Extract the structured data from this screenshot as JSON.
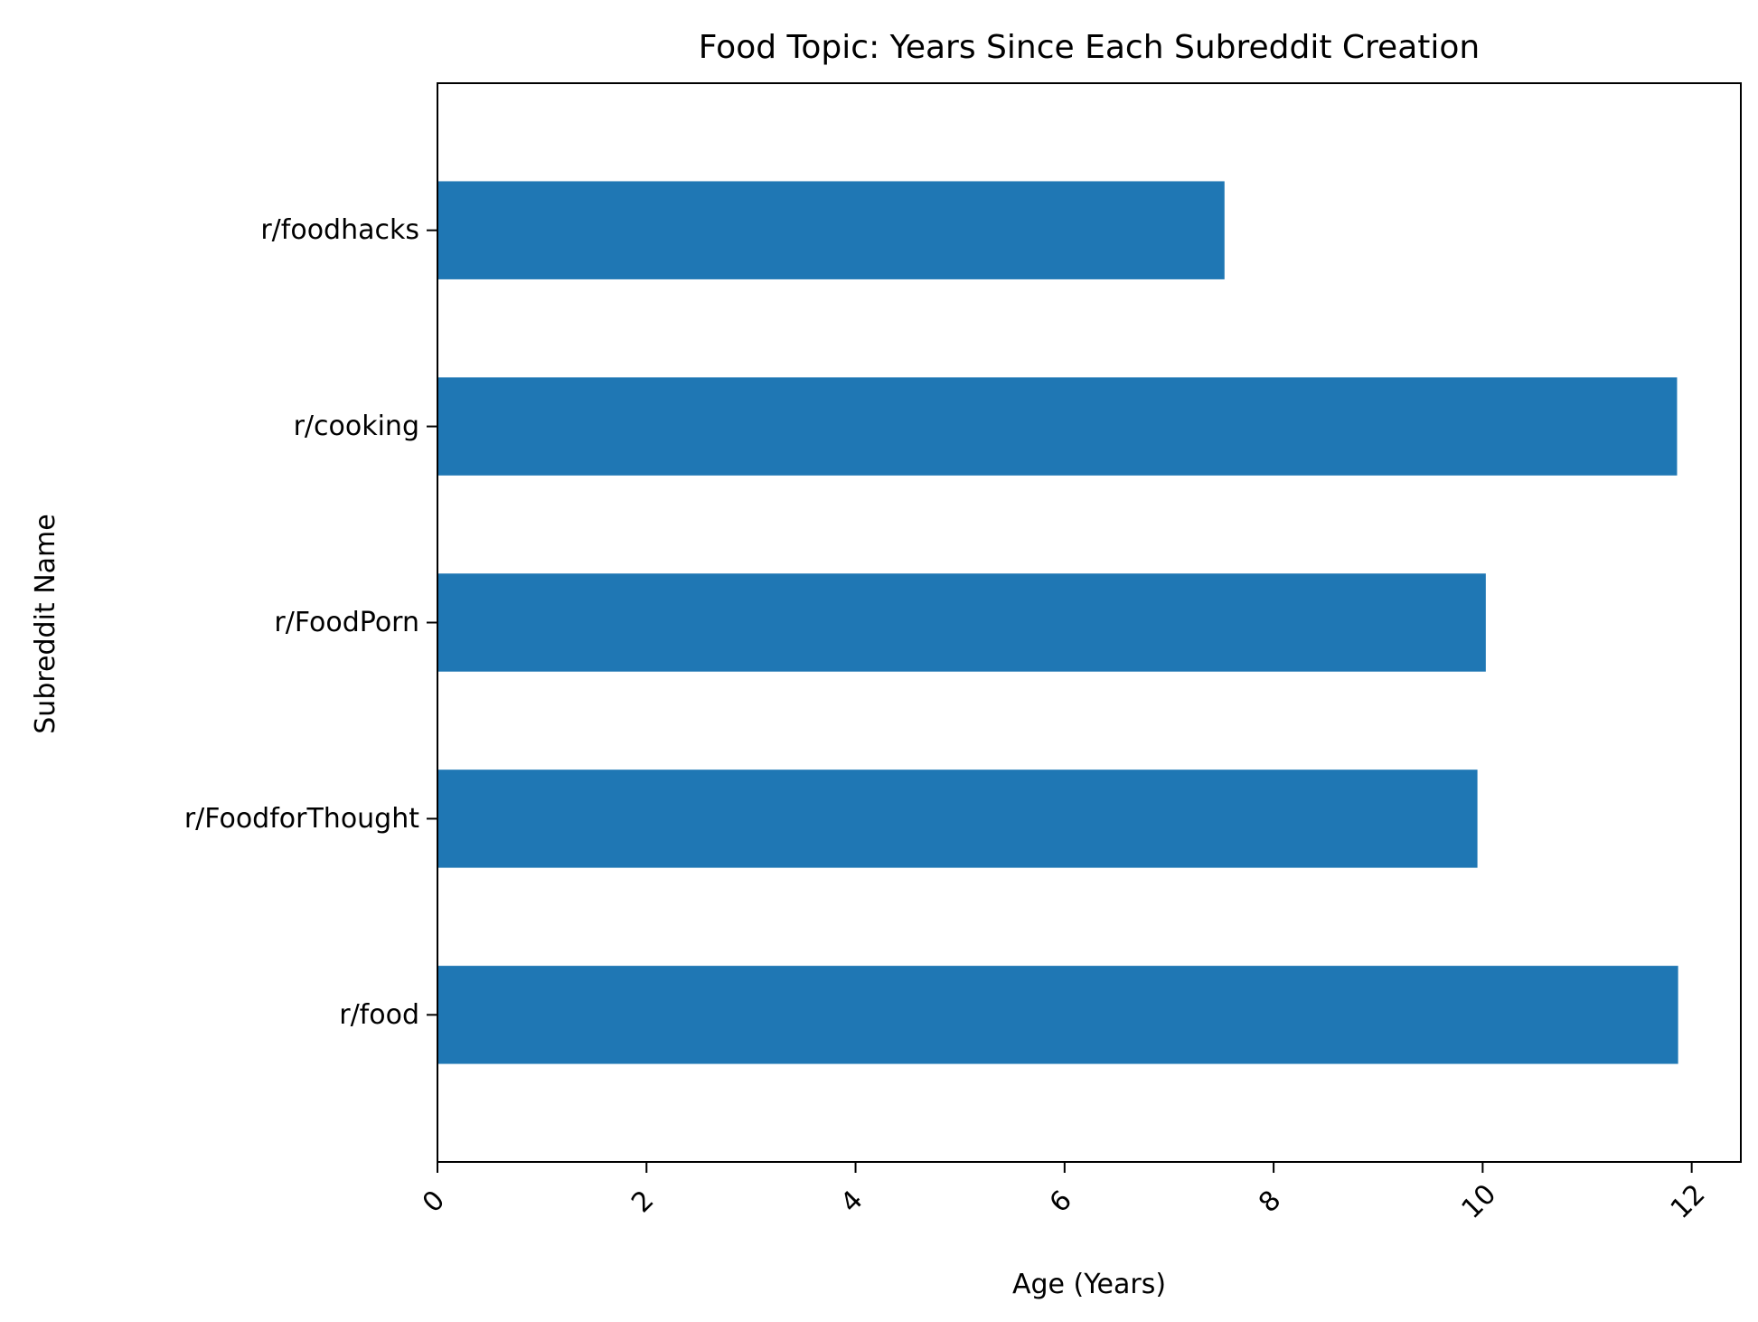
{
  "chart_data": {
    "type": "bar",
    "orientation": "horizontal",
    "title": "Food Topic: Years Since Each Subreddit Creation",
    "xlabel": "Age (Years)",
    "ylabel": "Subreddit Name",
    "categories": [
      "r/food",
      "r/FoodforThought",
      "r/FoodPorn",
      "r/cooking",
      "r/foodhacks"
    ],
    "values": [
      11.87,
      9.95,
      10.03,
      11.86,
      7.53
    ],
    "xlim": [
      0,
      12.47
    ],
    "xticks": [
      0,
      2,
      4,
      6,
      8,
      10,
      12
    ],
    "xtick_rotation": 45,
    "grid": false,
    "legend": "none",
    "bar_color": "#1f77b4"
  }
}
